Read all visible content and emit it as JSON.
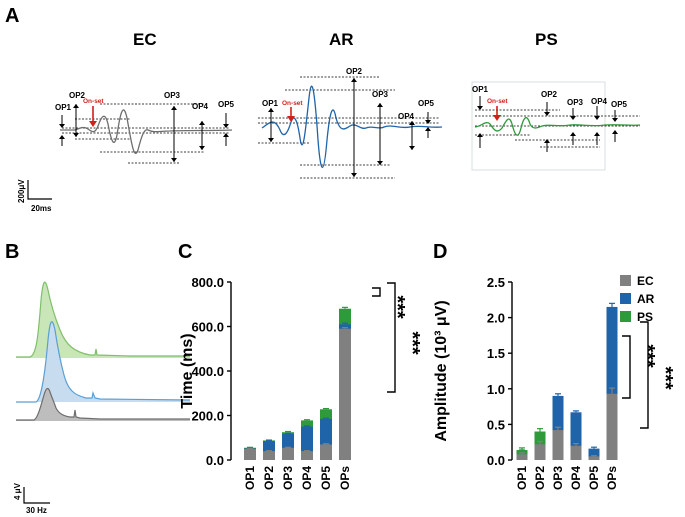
{
  "panels": {
    "A": "A",
    "B": "B",
    "C": "C",
    "D": "D"
  },
  "waveforms": {
    "conditions": [
      {
        "name": "EC",
        "color": "#6e6e6e"
      },
      {
        "name": "AR",
        "color": "#1f64a8"
      },
      {
        "name": "PS",
        "color": "#2e9a3a"
      }
    ],
    "op_labels": [
      "OP1",
      "OP2",
      "OP3",
      "OP4",
      "OP5"
    ],
    "onset_label": "On-set",
    "onset_color": "#d0201a",
    "scale_amplitude": "200μV",
    "scale_time": "20ms"
  },
  "spectra": {
    "colors": [
      "#7fbf6a",
      "#5a9fd4",
      "#6e6e6e"
    ],
    "scale_amplitude": "4 μV",
    "scale_frequency": "30 Hz"
  },
  "legend": {
    "entries": [
      {
        "name": "EC",
        "color": "#808080"
      },
      {
        "name": "AR",
        "color": "#1f64a8"
      },
      {
        "name": "PS",
        "color": "#2e9a3a"
      }
    ]
  },
  "chart_data": [
    {
      "type": "bar",
      "subtype": "overlaid",
      "panel": "C",
      "ylabel": "Time (ms)",
      "ylim": [
        0,
        800
      ],
      "yticks": [
        "0.0",
        "200.0",
        "400.0",
        "600.0",
        "800.0"
      ],
      "ytick_values": [
        0,
        200,
        400,
        600,
        800
      ],
      "categories": [
        "OP1",
        "OP2",
        "OP3",
        "OP4",
        "OP5",
        "OPs"
      ],
      "series": [
        {
          "name": "PS",
          "color": "#2e9a3a",
          "values": [
            55,
            88,
            125,
            178,
            228,
            680
          ],
          "errors": [
            2,
            2,
            3,
            3,
            3,
            6
          ]
        },
        {
          "name": "AR",
          "color": "#1f64a8",
          "values": [
            52,
            85,
            118,
            150,
            185,
            610
          ],
          "errors": [
            2,
            2,
            2,
            3,
            3,
            5
          ]
        },
        {
          "name": "EC",
          "color": "#808080",
          "values": [
            50,
            40,
            55,
            40,
            70,
            590
          ],
          "errors": [
            2,
            2,
            2,
            2,
            3,
            5
          ]
        }
      ],
      "significance": [
        {
          "label": "***",
          "from": "AR",
          "to": "PS"
        },
        {
          "label": "***",
          "from": "EC",
          "to": "PS"
        }
      ]
    },
    {
      "type": "bar",
      "subtype": "overlaid",
      "panel": "D",
      "ylabel": "Amplitude (10³ μV)",
      "ylim": [
        0,
        2.5
      ],
      "yticks": [
        "0.0",
        "0.5",
        "1.0",
        "1.5",
        "2.0",
        "2.5"
      ],
      "ytick_values": [
        0,
        0.5,
        1.0,
        1.5,
        2.0,
        2.5
      ],
      "categories": [
        "OP1",
        "OP2",
        "OP3",
        "OP4",
        "OP5",
        "OPs"
      ],
      "series": [
        {
          "name": "AR",
          "color": "#1f64a8",
          "values": [
            0.12,
            0.32,
            0.9,
            0.67,
            0.16,
            2.15
          ],
          "errors": [
            0.02,
            0.03,
            0.03,
            0.02,
            0.02,
            0.05
          ]
        },
        {
          "name": "PS",
          "color": "#2e9a3a",
          "values": [
            0.14,
            0.4,
            0.24,
            0.13,
            0.03,
            0.87
          ],
          "errors": [
            0.03,
            0.04,
            0.04,
            0.02,
            0.01,
            0.04
          ]
        },
        {
          "name": "EC",
          "color": "#808080",
          "values": [
            0.08,
            0.22,
            0.42,
            0.2,
            0.05,
            0.93
          ],
          "errors": [
            0.02,
            0.04,
            0.04,
            0.03,
            0.01,
            0.08
          ]
        }
      ],
      "significance": [
        {
          "label": "***",
          "from": "EC",
          "to": "AR"
        },
        {
          "label": "***",
          "from": "PS",
          "to": "AR"
        }
      ]
    }
  ]
}
